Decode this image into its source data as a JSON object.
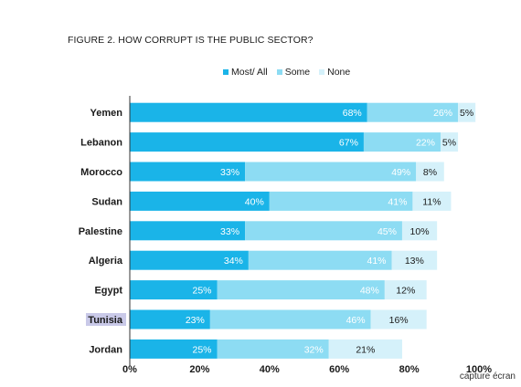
{
  "title": "FIGURE 2. HOW CORRUPT IS THE PUBLIC SECTOR?",
  "credit": "capture écran",
  "colors": {
    "most": "#1ab4e8",
    "some": "#8ddcf3",
    "none": "#d5f1fa",
    "axis": "#333333"
  },
  "chart_data": {
    "type": "bar",
    "orientation": "horizontal",
    "stacked": true,
    "title": "FIGURE 2. HOW CORRUPT IS THE PUBLIC SECTOR?",
    "categories": [
      "Yemen",
      "Lebanon",
      "Morocco",
      "Sudan",
      "Palestine",
      "Algeria",
      "Egypt",
      "Tunisia",
      "Jordan"
    ],
    "series": [
      {
        "name": "Most/ All",
        "color": "#1ab4e8",
        "values": [
          68,
          67,
          33,
          40,
          33,
          34,
          25,
          23,
          25
        ]
      },
      {
        "name": "Some",
        "color": "#8ddcf3",
        "values": [
          26,
          22,
          49,
          41,
          45,
          41,
          48,
          46,
          32
        ]
      },
      {
        "name": "None",
        "color": "#d5f1fa",
        "values": [
          5,
          5,
          8,
          11,
          10,
          13,
          12,
          16,
          21
        ]
      }
    ],
    "xlim": [
      0,
      100
    ],
    "xticks": [
      "0%",
      "20%",
      "40%",
      "60%",
      "80%",
      "100%"
    ],
    "legend": "top-center",
    "highlighted_category": "Tunisia"
  }
}
